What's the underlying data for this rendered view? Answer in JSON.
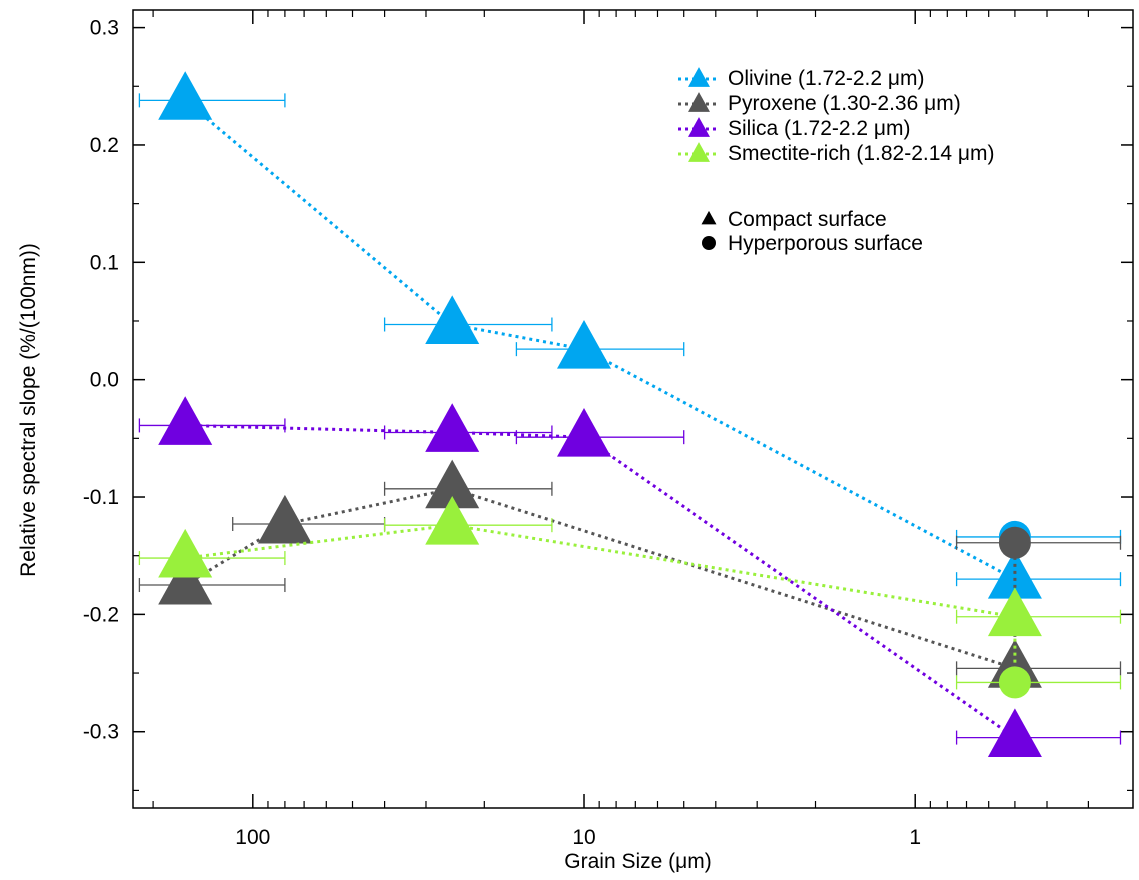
{
  "chart_data": {
    "type": "scatter",
    "title": "",
    "xlabel": "Grain Size (μm)",
    "ylabel": "Relative spectral slope (%/(100nm))",
    "x_scale": "log",
    "x_reversed": true,
    "xlim": [
      230,
      0.22
    ],
    "ylim": [
      -0.365,
      0.315
    ],
    "x_ticks": [
      {
        "value": 100,
        "label": "100"
      },
      {
        "value": 10,
        "label": "10"
      },
      {
        "value": 1,
        "label": "1"
      }
    ],
    "y_ticks": [
      {
        "value": 0.3,
        "label": "0.3"
      },
      {
        "value": 0.2,
        "label": "0.2"
      },
      {
        "value": 0.1,
        "label": "0.1"
      },
      {
        "value": 0.0,
        "label": "0.0"
      },
      {
        "value": -0.1,
        "label": "-0.1"
      },
      {
        "value": -0.2,
        "label": "-0.2"
      },
      {
        "value": -0.3,
        "label": "-0.3"
      }
    ],
    "legend_position": "top-right",
    "series": [
      {
        "name": "Olivine (1.72-2.2 μm)",
        "color": "#00a6f0",
        "compact": [
          {
            "x": 160,
            "y": 0.238,
            "xerr": [
              220,
              80
            ]
          },
          {
            "x": 25,
            "y": 0.047,
            "xerr": [
              40,
              12.5
            ]
          },
          {
            "x": 10,
            "y": 0.026,
            "xerr": [
              16,
              5
            ]
          },
          {
            "x": 0.5,
            "y": -0.17,
            "xerr": [
              0.75,
              0.24
            ]
          }
        ],
        "hyperporous": [
          {
            "x": 0.5,
            "y": -0.134,
            "xerr": [
              0.75,
              0.24
            ]
          }
        ]
      },
      {
        "name": "Pyroxene (1.30-2.36 μm)",
        "color": "#555555",
        "compact": [
          {
            "x": 160,
            "y": -0.175,
            "xerr": [
              220,
              80
            ]
          },
          {
            "x": 80,
            "y": -0.123,
            "xerr": [
              115,
              40
            ]
          },
          {
            "x": 25,
            "y": -0.093,
            "xerr": [
              40,
              12.5
            ]
          },
          {
            "x": 0.5,
            "y": -0.246,
            "xerr": [
              0.75,
              0.24
            ]
          }
        ],
        "hyperporous": [
          {
            "x": 0.5,
            "y": -0.139,
            "xerr": [
              0.75,
              0.24
            ]
          }
        ]
      },
      {
        "name": "Silica (1.72-2.2 μm)",
        "color": "#7000e0",
        "compact": [
          {
            "x": 160,
            "y": -0.039,
            "xerr": [
              220,
              80
            ]
          },
          {
            "x": 25,
            "y": -0.045,
            "xerr": [
              40,
              12.5
            ]
          },
          {
            "x": 10,
            "y": -0.049,
            "xerr": [
              16,
              5
            ]
          },
          {
            "x": 0.5,
            "y": -0.305,
            "xerr": [
              0.75,
              0.24
            ]
          }
        ],
        "hyperporous": []
      },
      {
        "name": "Smectite-rich (1.82-2.14 μm)",
        "color": "#99f03c",
        "compact": [
          {
            "x": 160,
            "y": -0.152,
            "xerr": [
              220,
              80
            ]
          },
          {
            "x": 25,
            "y": -0.124,
            "xerr": [
              40,
              12.5
            ]
          },
          {
            "x": 0.5,
            "y": -0.202,
            "xerr": [
              0.75,
              0.24
            ]
          }
        ],
        "hyperporous": [
          {
            "x": 0.5,
            "y": -0.258,
            "xerr": [
              0.75,
              0.24
            ]
          }
        ]
      }
    ],
    "marker_legend": [
      {
        "shape": "triangle",
        "label": "Compact surface"
      },
      {
        "shape": "circle",
        "label": "Hyperporous surface"
      }
    ]
  }
}
